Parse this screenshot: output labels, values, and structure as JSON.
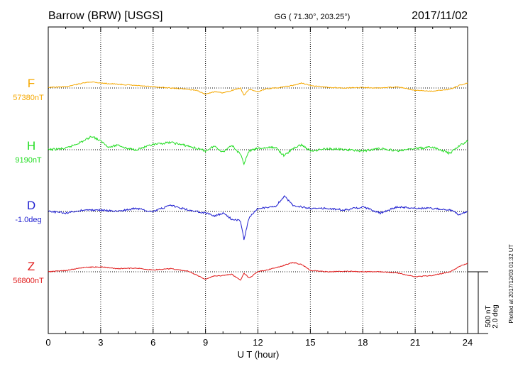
{
  "chart_data": {
    "type": "line",
    "title": "Barrow (BRW)  [USGS]",
    "coords": "GG ( 71.30°, 203.25°)",
    "date": "2017/11/02",
    "xlabel": "U T (hour)",
    "xlim": [
      0,
      24
    ],
    "xticks": [
      "0",
      "3",
      "6",
      "9",
      "12",
      "15",
      "18",
      "21",
      "24"
    ],
    "grid": "dotted vertical every 3 hours",
    "scale_bar": {
      "label1": "500 nT",
      "label2": "2.0 deg",
      "nT": 500
    },
    "plotted_note": "Plotted at 2017/12/03 01:32 UT",
    "series": [
      {
        "name": "F",
        "baseline_label": "57380nT",
        "color": "#f5a800",
        "x": [
          0,
          1,
          2,
          2.5,
          3,
          4,
          5,
          6,
          7,
          8,
          8.5,
          9,
          9.5,
          10,
          10.5,
          11,
          11.2,
          11.5,
          12,
          12.5,
          13,
          14,
          14.5,
          15,
          16,
          17,
          18,
          19,
          20,
          21,
          22,
          23,
          23.5,
          24
        ],
        "y": [
          57385,
          57390,
          57420,
          57430,
          57420,
          57410,
          57400,
          57390,
          57380,
          57370,
          57360,
          57330,
          57350,
          57340,
          57360,
          57380,
          57320,
          57370,
          57350,
          57375,
          57380,
          57400,
          57420,
          57400,
          57385,
          57380,
          57385,
          57380,
          57390,
          57360,
          57355,
          57370,
          57400,
          57420
        ]
      },
      {
        "name": "H",
        "baseline_label": "9190nT",
        "color": "#22dd22",
        "x": [
          0,
          1,
          2,
          2.5,
          3,
          3.5,
          4,
          4.5,
          5,
          6,
          7,
          8,
          9,
          9.5,
          10,
          10.5,
          11,
          11.2,
          11.5,
          12,
          13,
          13.5,
          14,
          14.5,
          15,
          16,
          17,
          18,
          19,
          20,
          21,
          22,
          23,
          23.5,
          24
        ],
        "y": [
          9190,
          9200,
          9260,
          9300,
          9260,
          9210,
          9230,
          9200,
          9190,
          9230,
          9250,
          9220,
          9180,
          9220,
          9170,
          9230,
          9150,
          9080,
          9180,
          9200,
          9210,
          9140,
          9200,
          9230,
          9180,
          9200,
          9190,
          9180,
          9200,
          9180,
          9200,
          9210,
          9160,
          9220,
          9260
        ]
      },
      {
        "name": "D",
        "baseline_label": "-1.0deg",
        "color": "#1f1fd0",
        "x": [
          0,
          1,
          2,
          3,
          4,
          5,
          6,
          7,
          8,
          9,
          9.5,
          10,
          10.5,
          11,
          11.2,
          11.5,
          12,
          13,
          13.5,
          14,
          15,
          16,
          17,
          18,
          19,
          20,
          21,
          22,
          23,
          23.5,
          24
        ],
        "y": [
          -1.0,
          -1.05,
          -0.95,
          -0.95,
          -1.0,
          -0.9,
          -1.0,
          -0.8,
          -0.95,
          -1.05,
          -1.15,
          -1.05,
          -1.25,
          -1.3,
          -1.9,
          -1.2,
          -0.9,
          -0.85,
          -0.5,
          -0.8,
          -0.9,
          -0.9,
          -0.95,
          -0.85,
          -1.05,
          -0.85,
          -0.9,
          -0.9,
          -0.95,
          -1.1,
          -1.0
        ]
      },
      {
        "name": "Z",
        "baseline_label": "56800nT",
        "color": "#e01818",
        "x": [
          0,
          1,
          2,
          3,
          4,
          5,
          6,
          7,
          8,
          9,
          9.5,
          10,
          10.5,
          11,
          11.2,
          11.5,
          12,
          13,
          14,
          14.5,
          15,
          16,
          17,
          18,
          19,
          20,
          21,
          22,
          23,
          23.5,
          24
        ],
        "y": [
          56800,
          56810,
          56835,
          56840,
          56825,
          56830,
          56815,
          56825,
          56805,
          56740,
          56765,
          56770,
          56780,
          56730,
          56790,
          56750,
          56800,
          56830,
          56875,
          56860,
          56810,
          56800,
          56805,
          56800,
          56800,
          56790,
          56760,
          56770,
          56800,
          56840,
          56870
        ]
      }
    ]
  }
}
